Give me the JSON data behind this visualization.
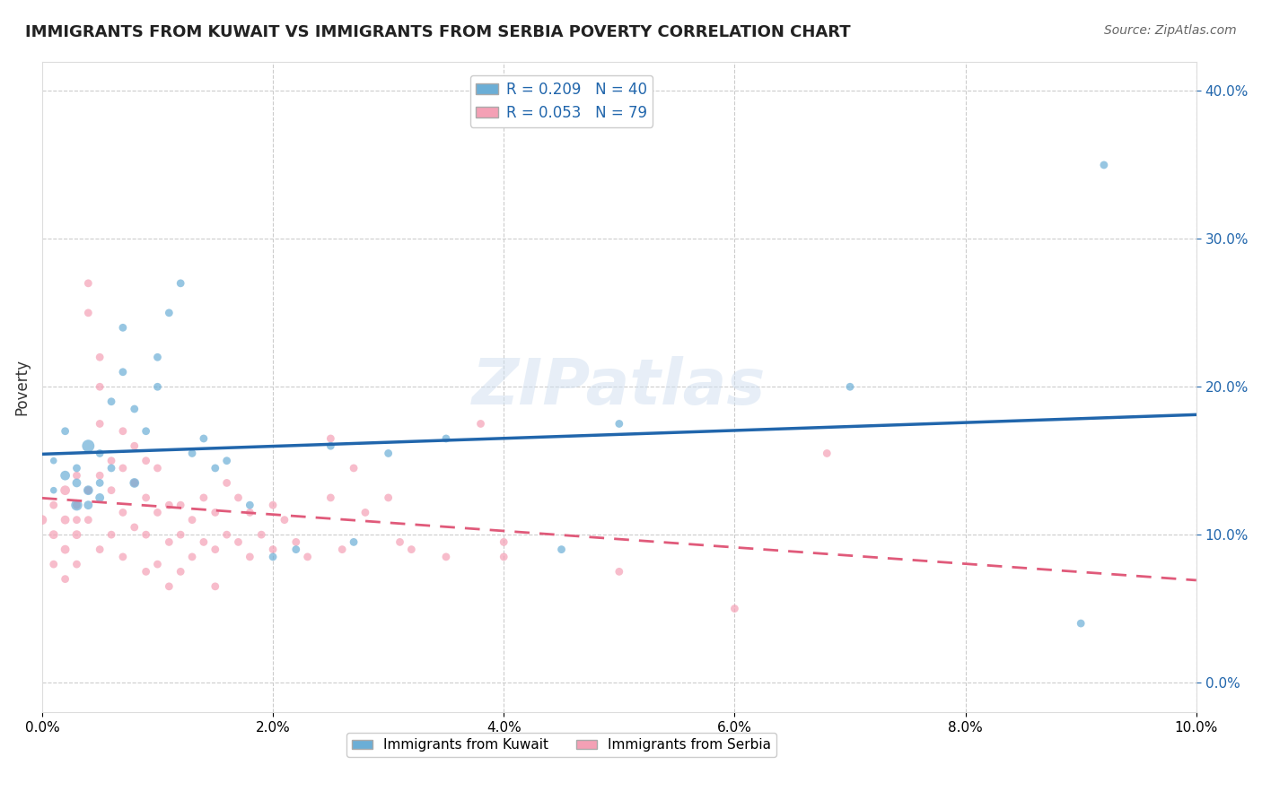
{
  "title": "IMMIGRANTS FROM KUWAIT VS IMMIGRANTS FROM SERBIA POVERTY CORRELATION CHART",
  "source": "Source: ZipAtlas.com",
  "ylabel": "Poverty",
  "xlabel": "",
  "xlim": [
    0.0,
    0.1
  ],
  "ylim": [
    -0.02,
    0.42
  ],
  "xticks": [
    0.0,
    0.02,
    0.04,
    0.06,
    0.08,
    0.1
  ],
  "yticks": [
    0.0,
    0.1,
    0.2,
    0.3,
    0.4
  ],
  "color_kuwait": "#6baed6",
  "color_serbia": "#f4a0b5",
  "line_color_kuwait": "#2166ac",
  "line_color_serbia": "#e05a7a",
  "R_kuwait": 0.209,
  "N_kuwait": 40,
  "R_serbia": 0.053,
  "N_serbia": 79,
  "legend_label_kuwait": "Immigrants from Kuwait",
  "legend_label_serbia": "Immigrants from Serbia",
  "kuwait_x": [
    0.001,
    0.001,
    0.002,
    0.002,
    0.003,
    0.003,
    0.003,
    0.004,
    0.004,
    0.004,
    0.005,
    0.005,
    0.005,
    0.006,
    0.006,
    0.007,
    0.007,
    0.008,
    0.008,
    0.009,
    0.01,
    0.01,
    0.011,
    0.012,
    0.013,
    0.014,
    0.015,
    0.016,
    0.018,
    0.02,
    0.022,
    0.025,
    0.027,
    0.03,
    0.035,
    0.045,
    0.05,
    0.07,
    0.09,
    0.092
  ],
  "kuwait_y": [
    0.13,
    0.15,
    0.14,
    0.17,
    0.12,
    0.135,
    0.145,
    0.16,
    0.13,
    0.12,
    0.155,
    0.135,
    0.125,
    0.19,
    0.145,
    0.24,
    0.21,
    0.185,
    0.135,
    0.17,
    0.2,
    0.22,
    0.25,
    0.27,
    0.155,
    0.165,
    0.145,
    0.15,
    0.12,
    0.085,
    0.09,
    0.16,
    0.095,
    0.155,
    0.165,
    0.09,
    0.175,
    0.2,
    0.04,
    0.35
  ],
  "kuwait_sizes": [
    30,
    30,
    60,
    40,
    80,
    50,
    40,
    100,
    60,
    50,
    40,
    40,
    50,
    40,
    40,
    40,
    40,
    40,
    60,
    40,
    40,
    40,
    40,
    40,
    40,
    40,
    40,
    40,
    40,
    40,
    40,
    40,
    40,
    40,
    40,
    40,
    40,
    40,
    40,
    40
  ],
  "serbia_x": [
    0.0,
    0.001,
    0.001,
    0.001,
    0.002,
    0.002,
    0.002,
    0.002,
    0.003,
    0.003,
    0.003,
    0.003,
    0.003,
    0.004,
    0.004,
    0.004,
    0.004,
    0.005,
    0.005,
    0.005,
    0.005,
    0.005,
    0.006,
    0.006,
    0.006,
    0.007,
    0.007,
    0.007,
    0.007,
    0.008,
    0.008,
    0.008,
    0.009,
    0.009,
    0.009,
    0.009,
    0.01,
    0.01,
    0.01,
    0.011,
    0.011,
    0.011,
    0.012,
    0.012,
    0.012,
    0.013,
    0.013,
    0.014,
    0.014,
    0.015,
    0.015,
    0.015,
    0.016,
    0.016,
    0.017,
    0.017,
    0.018,
    0.018,
    0.019,
    0.02,
    0.02,
    0.021,
    0.022,
    0.023,
    0.025,
    0.025,
    0.026,
    0.027,
    0.028,
    0.03,
    0.031,
    0.032,
    0.035,
    0.038,
    0.04,
    0.04,
    0.05,
    0.06,
    0.068
  ],
  "serbia_y": [
    0.11,
    0.12,
    0.1,
    0.08,
    0.13,
    0.11,
    0.09,
    0.07,
    0.14,
    0.12,
    0.1,
    0.08,
    0.11,
    0.27,
    0.25,
    0.13,
    0.11,
    0.22,
    0.2,
    0.175,
    0.14,
    0.09,
    0.15,
    0.13,
    0.1,
    0.17,
    0.145,
    0.115,
    0.085,
    0.16,
    0.135,
    0.105,
    0.15,
    0.125,
    0.1,
    0.075,
    0.145,
    0.115,
    0.08,
    0.12,
    0.095,
    0.065,
    0.12,
    0.1,
    0.075,
    0.11,
    0.085,
    0.125,
    0.095,
    0.115,
    0.09,
    0.065,
    0.135,
    0.1,
    0.125,
    0.095,
    0.115,
    0.085,
    0.1,
    0.12,
    0.09,
    0.11,
    0.095,
    0.085,
    0.165,
    0.125,
    0.09,
    0.145,
    0.115,
    0.125,
    0.095,
    0.09,
    0.085,
    0.175,
    0.095,
    0.085,
    0.075,
    0.05,
    0.155
  ],
  "serbia_sizes": [
    60,
    40,
    50,
    40,
    60,
    50,
    50,
    40,
    40,
    40,
    50,
    40,
    40,
    40,
    40,
    40,
    40,
    40,
    40,
    40,
    40,
    40,
    40,
    40,
    40,
    40,
    40,
    40,
    40,
    40,
    40,
    40,
    40,
    40,
    40,
    40,
    40,
    40,
    40,
    40,
    40,
    40,
    40,
    40,
    40,
    40,
    40,
    40,
    40,
    40,
    40,
    40,
    40,
    40,
    40,
    40,
    40,
    40,
    40,
    40,
    40,
    40,
    40,
    40,
    40,
    40,
    40,
    40,
    40,
    40,
    40,
    40,
    40,
    40,
    40,
    40,
    40,
    40,
    40
  ],
  "watermark": "ZIPatlas",
  "background_color": "#ffffff",
  "grid_color": "#cccccc"
}
